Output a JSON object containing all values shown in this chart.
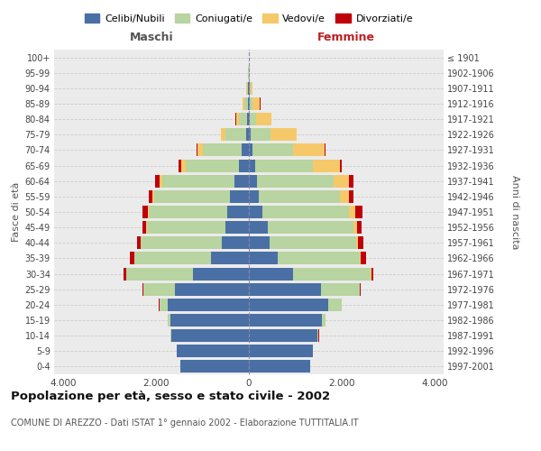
{
  "age_groups": [
    "0-4",
    "5-9",
    "10-14",
    "15-19",
    "20-24",
    "25-29",
    "30-34",
    "35-39",
    "40-44",
    "45-49",
    "50-54",
    "55-59",
    "60-64",
    "65-69",
    "70-74",
    "75-79",
    "80-84",
    "85-89",
    "90-94",
    "95-99",
    "100+"
  ],
  "birth_years": [
    "1997-2001",
    "1992-1996",
    "1987-1991",
    "1982-1986",
    "1977-1981",
    "1972-1976",
    "1967-1971",
    "1962-1966",
    "1957-1961",
    "1952-1956",
    "1947-1951",
    "1942-1946",
    "1937-1941",
    "1932-1936",
    "1927-1931",
    "1922-1926",
    "1917-1921",
    "1912-1916",
    "1907-1911",
    "1902-1906",
    "≤ 1901"
  ],
  "colors": {
    "celibi": "#4a6fa5",
    "coniugati": "#b8d4a0",
    "vedovi": "#f5c96a",
    "divorziati": "#c0000a"
  },
  "xlim": 4200,
  "title": "Popolazione per età, sesso e stato civile - 2002",
  "subtitle": "COMUNE DI AREZZO - Dati ISTAT 1° gennaio 2002 - Elaborazione TUTTITALIA.IT",
  "xlabel_left": "Maschi",
  "xlabel_right": "Femmine",
  "ylabel_left": "Fasce di età",
  "ylabel_right": "Anni di nascita",
  "legend_labels": [
    "Celibi/Nubili",
    "Coniugati/e",
    "Vedovi/e",
    "Divorziati/e"
  ],
  "maschi_celibi": [
    1480,
    1550,
    1680,
    1700,
    1750,
    1600,
    1200,
    820,
    580,
    500,
    460,
    400,
    320,
    220,
    150,
    60,
    35,
    25,
    18,
    8,
    5
  ],
  "maschi_coniugati": [
    5,
    5,
    15,
    50,
    180,
    680,
    1450,
    1650,
    1750,
    1700,
    1700,
    1650,
    1550,
    1150,
    850,
    450,
    170,
    70,
    25,
    6,
    1
  ],
  "maschi_vedovi": [
    0,
    0,
    0,
    1,
    1,
    2,
    4,
    4,
    5,
    8,
    18,
    38,
    55,
    95,
    110,
    95,
    75,
    35,
    12,
    4,
    1
  ],
  "maschi_divorziati": [
    0,
    0,
    1,
    2,
    4,
    8,
    45,
    90,
    70,
    90,
    110,
    75,
    90,
    45,
    12,
    5,
    5,
    4,
    1,
    0,
    0
  ],
  "femmine_nubili": [
    1320,
    1380,
    1480,
    1580,
    1720,
    1550,
    950,
    620,
    450,
    400,
    300,
    220,
    170,
    130,
    80,
    40,
    25,
    20,
    12,
    7,
    4
  ],
  "femmine_coniugate": [
    5,
    7,
    25,
    75,
    280,
    840,
    1680,
    1780,
    1870,
    1850,
    1850,
    1750,
    1650,
    1250,
    870,
    420,
    130,
    55,
    18,
    4,
    1
  ],
  "femmine_vedove": [
    0,
    0,
    1,
    2,
    3,
    4,
    8,
    18,
    38,
    75,
    140,
    190,
    330,
    580,
    680,
    570,
    330,
    165,
    55,
    13,
    2
  ],
  "femmine_divorziate": [
    0,
    0,
    1,
    2,
    6,
    12,
    55,
    110,
    110,
    115,
    160,
    95,
    110,
    35,
    18,
    8,
    4,
    4,
    2,
    0,
    0
  ]
}
